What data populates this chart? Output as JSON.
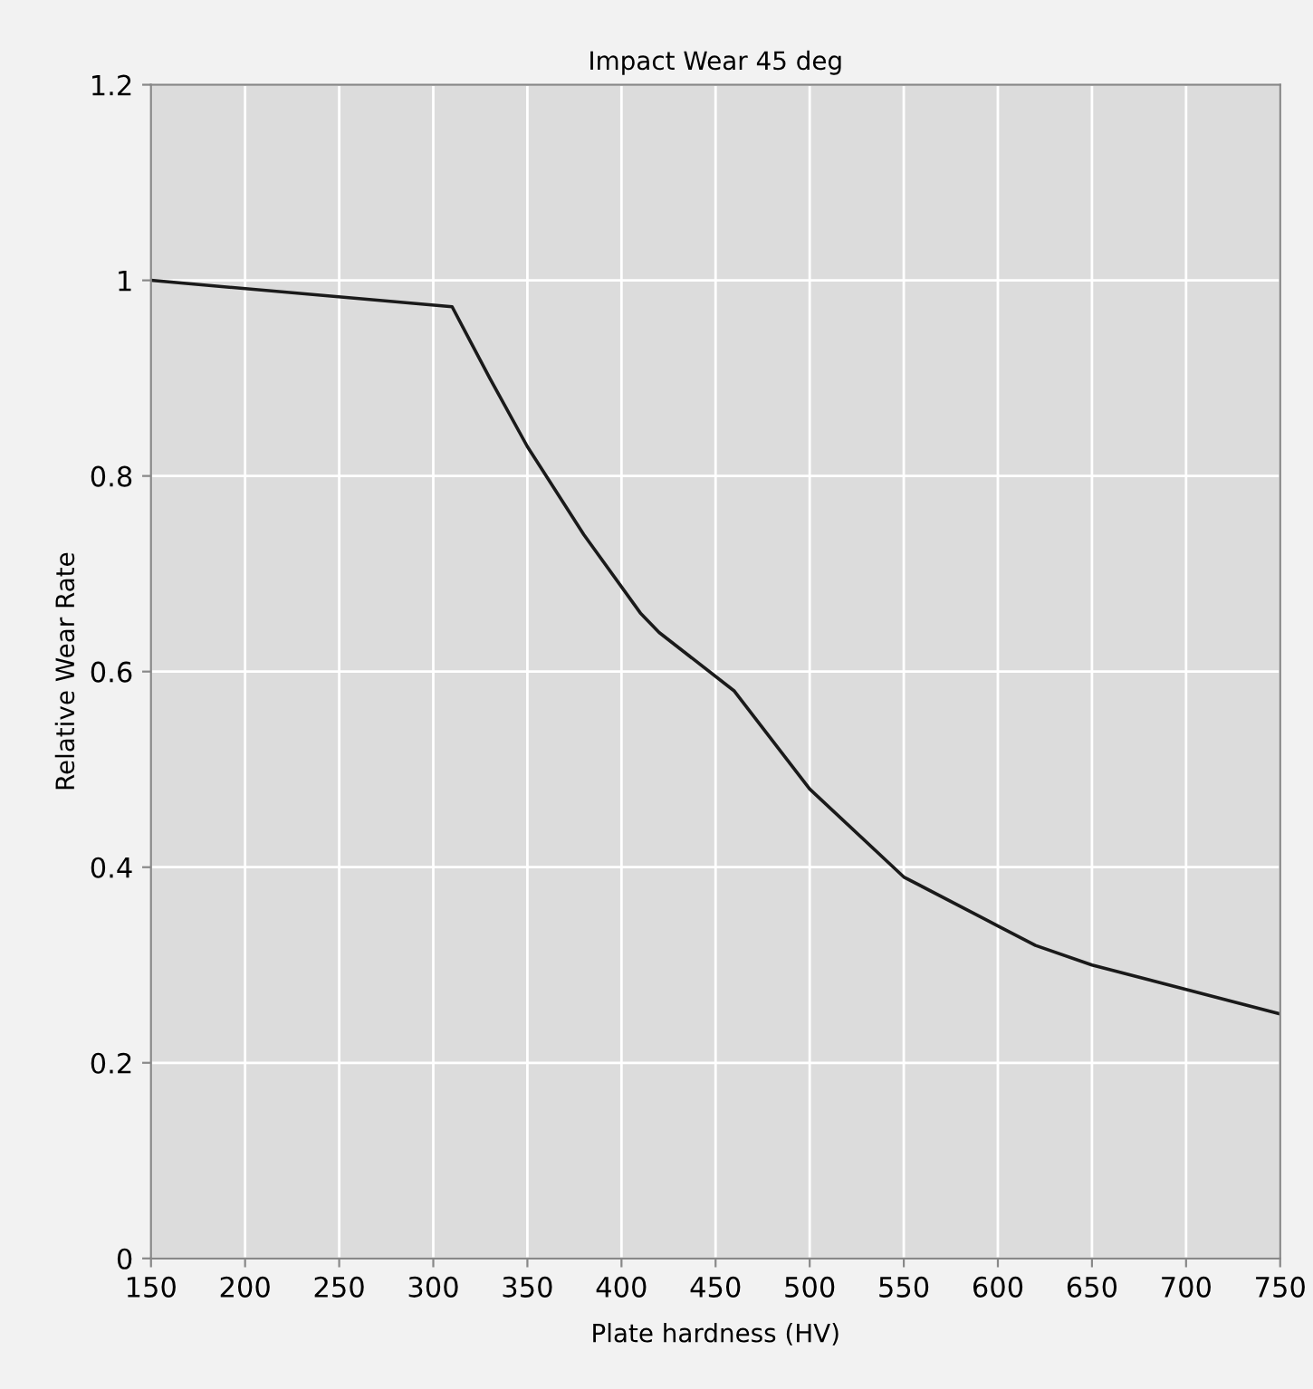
{
  "chart_data": {
    "type": "line",
    "title": "Impact Wear 45 deg",
    "xlabel": "Plate hardness (HV)",
    "ylabel": "Relative Wear Rate",
    "x": [
      150,
      310,
      330,
      350,
      380,
      410,
      420,
      460,
      500,
      550,
      600,
      620,
      650,
      700,
      750
    ],
    "series": [
      {
        "color": "#1a1a1a",
        "values": [
          1.0,
          0.973,
          0.9,
          0.83,
          0.74,
          0.66,
          0.64,
          0.58,
          0.48,
          0.39,
          0.34,
          0.32,
          0.3,
          0.275,
          0.25
        ]
      }
    ],
    "xlim": [
      150,
      750
    ],
    "xticks": [
      150,
      200,
      250,
      300,
      350,
      400,
      450,
      500,
      550,
      600,
      650,
      700,
      750
    ],
    "ylim": [
      0,
      1.2
    ],
    "yticks": [
      0,
      {
        "value": 0.2,
        "label": "0.2"
      },
      {
        "value": 0.4,
        "label": "0.4"
      },
      {
        "value": 0.6,
        "label": "0.6"
      },
      {
        "value": 0.8,
        "label": "0.8"
      },
      1,
      {
        "value": 1.2,
        "label": "1.2"
      }
    ],
    "grid": true,
    "marker": "none",
    "line_style": "solid"
  }
}
